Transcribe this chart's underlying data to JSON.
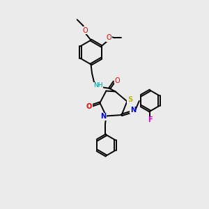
{
  "bg_color": "#ebebeb",
  "bond_color": "#000000",
  "bond_width": 1.4,
  "atom_colors": {
    "C": "#000000",
    "N": "#0000cc",
    "O": "#ee0000",
    "S": "#bbbb00",
    "F": "#cc00cc",
    "H": "#009090"
  },
  "fig_width": 3.0,
  "fig_height": 3.0,
  "xlim": [
    0,
    10
  ],
  "ylim": [
    0,
    10
  ]
}
